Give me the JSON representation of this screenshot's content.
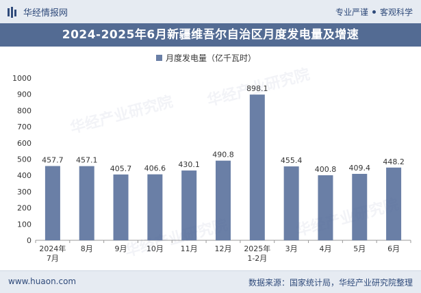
{
  "header": {
    "brand": "华经情报网",
    "tag_left": "专业严谨",
    "tag_right": "客观科学"
  },
  "title": "2024-2025年6月新疆维吾尔自治区月度发电量及增速",
  "footer": {
    "url": "www.huaon.com",
    "source": "数据来源：国家统计局，华经产业研究院整理"
  },
  "watermark": "华经产业研究院",
  "colors": {
    "bar": "#6a7fa6",
    "title_bg": "#536b93",
    "band": "#e6ebf2"
  },
  "chart_data": {
    "type": "bar",
    "categories": [
      "2024年\n7月",
      "8月",
      "9月",
      "10月",
      "11月",
      "12月",
      "2025年\n1-2月",
      "3月",
      "4月",
      "5月",
      "6月"
    ],
    "series": [
      {
        "name": "月度发电量（亿千瓦时）",
        "values": [
          457.7,
          457.1,
          405.7,
          406.6,
          430.1,
          490.8,
          898.1,
          455.4,
          400.8,
          409.4,
          448.2
        ]
      }
    ],
    "ylim": [
      0,
      1000
    ],
    "yticks": [
      0,
      100,
      200,
      300,
      400,
      500,
      600,
      700,
      800,
      900,
      1000
    ],
    "legend_position": "top-center",
    "grid": false
  }
}
